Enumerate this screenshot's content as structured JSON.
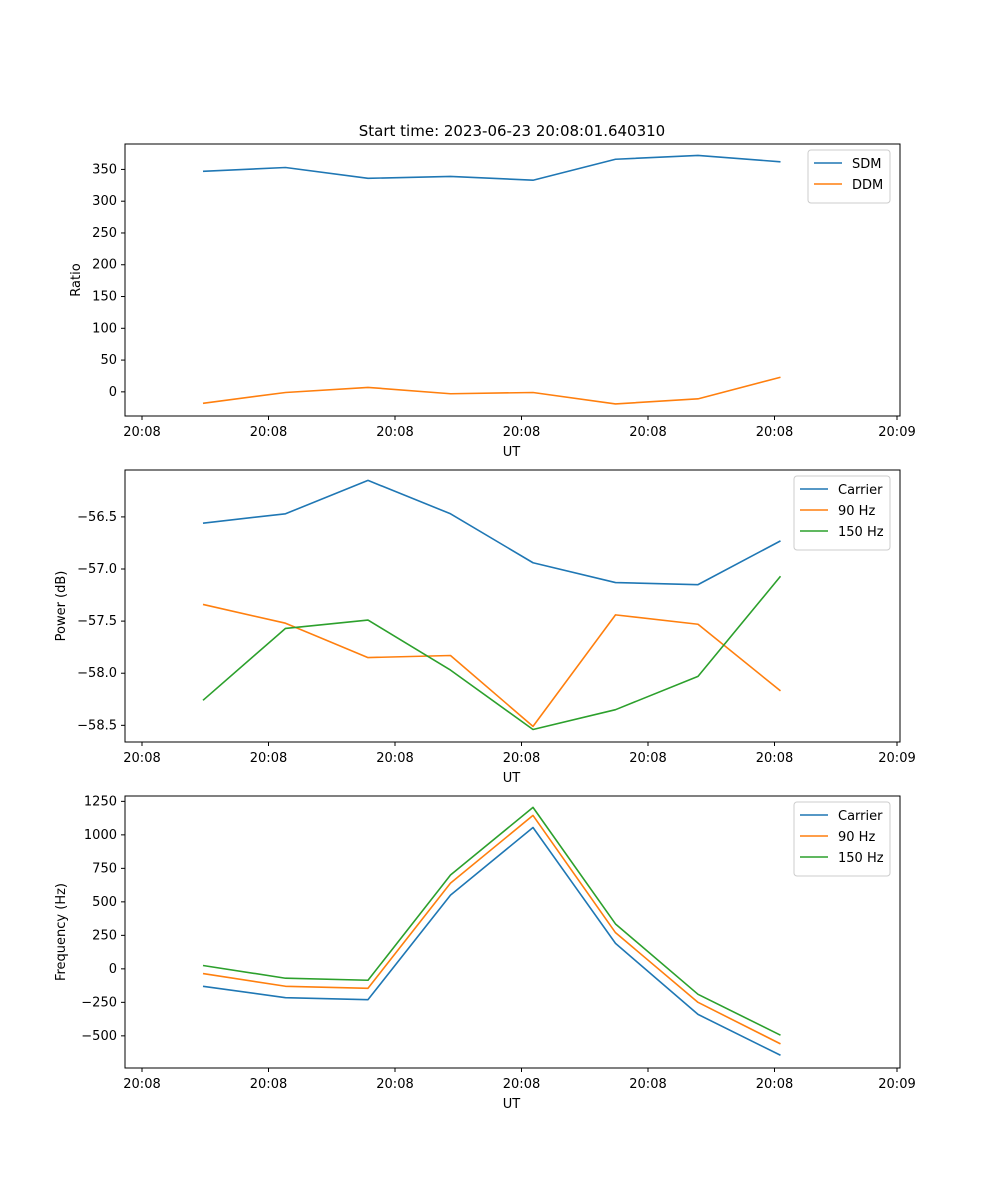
{
  "title": "Start time: 2023-06-23 20:08:01.640310",
  "colors": {
    "blue": "#1f77b4",
    "orange": "#ff7f0e",
    "green": "#2ca02c"
  },
  "chart_data": [
    {
      "type": "line",
      "xlabel": "UT",
      "ylabel": "Ratio",
      "ylim": [
        -38,
        390
      ],
      "yticks": [
        0,
        50,
        100,
        150,
        200,
        250,
        300,
        350
      ],
      "ytick_labels": [
        "0",
        "50",
        "100",
        "150",
        "200",
        "250",
        "300",
        "350"
      ],
      "xtick_labels": [
        "20:08",
        "20:08",
        "20:08",
        "20:08",
        "20:08",
        "20:08",
        "20:09"
      ],
      "legend_position": "top-right",
      "grid": false,
      "x_points": 8,
      "series": [
        {
          "name": "SDM",
          "color": "#1f77b4",
          "values": [
            347,
            353,
            336,
            339,
            333,
            366,
            372,
            362
          ]
        },
        {
          "name": "DDM",
          "color": "#ff7f0e",
          "values": [
            -18,
            -1,
            7,
            -3,
            -1,
            -19,
            -11,
            23
          ]
        }
      ]
    },
    {
      "type": "line",
      "xlabel": "UT",
      "ylabel": "Power (dB)",
      "ylim": [
        -58.66,
        -56.05
      ],
      "yticks": [
        -56.5,
        -57.0,
        -57.5,
        -58.0,
        -58.5
      ],
      "ytick_labels": [
        "−56.5",
        "−57.0",
        "−57.5",
        "−58.0",
        "−58.5"
      ],
      "xtick_labels": [
        "20:08",
        "20:08",
        "20:08",
        "20:08",
        "20:08",
        "20:08",
        "20:09"
      ],
      "legend_position": "top-right",
      "grid": false,
      "x_points": 8,
      "series": [
        {
          "name": "Carrier",
          "color": "#1f77b4",
          "values": [
            -56.56,
            -56.47,
            -56.15,
            -56.47,
            -56.94,
            -57.13,
            -57.15,
            -56.73
          ]
        },
        {
          "name": "90 Hz",
          "color": "#ff7f0e",
          "values": [
            -57.34,
            -57.52,
            -57.85,
            -57.83,
            -58.51,
            -57.44,
            -57.53,
            -58.17
          ]
        },
        {
          "name": "150 Hz",
          "color": "#2ca02c",
          "values": [
            -58.26,
            -57.57,
            -57.49,
            -57.97,
            -58.54,
            -58.35,
            -58.03,
            -57.07
          ]
        }
      ]
    },
    {
      "type": "line",
      "xlabel": "UT",
      "ylabel": "Frequency (Hz)",
      "ylim": [
        -740,
        1290
      ],
      "yticks": [
        1250,
        1000,
        750,
        500,
        250,
        0,
        -250,
        -500
      ],
      "ytick_labels": [
        "1250",
        "1000",
        "750",
        "500",
        "250",
        "0",
        "−250",
        "−500"
      ],
      "xtick_labels": [
        "20:08",
        "20:08",
        "20:08",
        "20:08",
        "20:08",
        "20:08",
        "20:09"
      ],
      "legend_position": "top-right",
      "grid": false,
      "x_points": 8,
      "series": [
        {
          "name": "Carrier",
          "color": "#1f77b4",
          "values": [
            -130,
            -215,
            -230,
            550,
            1055,
            190,
            -340,
            -645
          ]
        },
        {
          "name": "90 Hz",
          "color": "#ff7f0e",
          "values": [
            -35,
            -130,
            -145,
            640,
            1145,
            270,
            -250,
            -560
          ]
        },
        {
          "name": "150 Hz",
          "color": "#2ca02c",
          "values": [
            25,
            -70,
            -85,
            700,
            1205,
            335,
            -190,
            -495
          ]
        }
      ]
    }
  ]
}
